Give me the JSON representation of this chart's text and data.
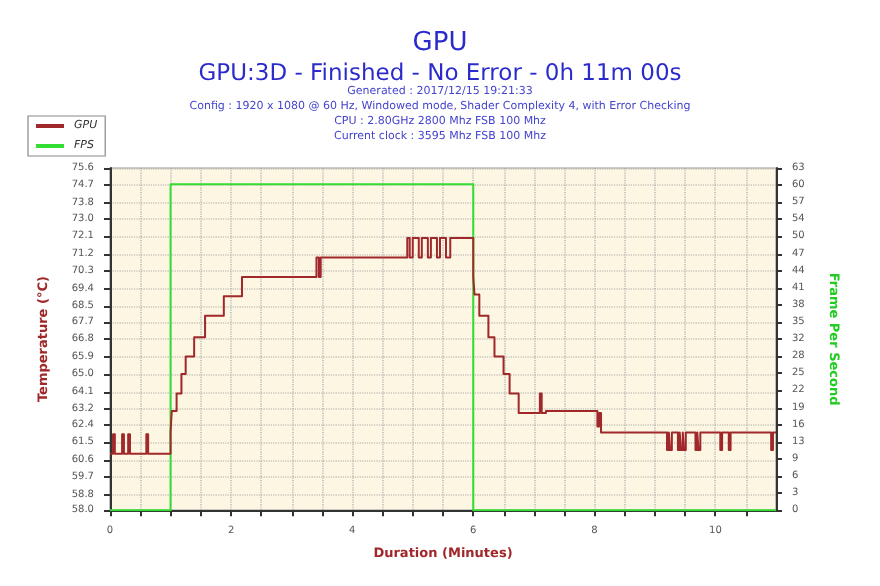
{
  "chart_data": {
    "type": "step",
    "title": "GPU",
    "subtitle": "GPU:3D - Finished - No Error - 0h 11m 00s",
    "annotations": [
      "Generated : 2017/12/15 19:21:33",
      "Config : 1920 x 1080 @ 60 Hz, Windowed mode, Shader Complexity 4, with Error Checking",
      "CPU : 2.80GHz 2800 Mhz FSB 100 Mhz",
      "Current clock : 3595 Mhz FSB 100 Mhz"
    ],
    "xlabel": "Duration (Minutes)",
    "ylabel": "Temperature (°C)",
    "y2label": "Frame Per Second",
    "xlim": [
      0,
      11
    ],
    "xticks": [
      0,
      {
        "value": 0.5,
        "label": null
      },
      {
        "value": 1,
        "label": null
      },
      {
        "value": 1.5,
        "label": null
      },
      2,
      {
        "value": 2.5,
        "label": null
      },
      {
        "value": 3,
        "label": null
      },
      {
        "value": 3.5,
        "label": null
      },
      4,
      {
        "value": 4.5,
        "label": null
      },
      {
        "value": 5,
        "label": null
      },
      {
        "value": 5.5,
        "label": null
      },
      6,
      {
        "value": 6.5,
        "label": null
      },
      {
        "value": 7,
        "label": null
      },
      {
        "value": 7.5,
        "label": null
      },
      8,
      {
        "value": 8.5,
        "label": null
      },
      {
        "value": 9,
        "label": null
      },
      {
        "value": 9.5,
        "label": null
      },
      10,
      {
        "value": 10.5,
        "label": null
      }
    ],
    "ylim": [
      58,
      75.6
    ],
    "yticks": [
      {
        "value": 58,
        "label": "58.0"
      },
      58.8,
      59.7,
      60.6,
      61.5,
      62.4,
      63.2,
      64.1,
      {
        "value": 65,
        "label": "65.0"
      },
      65.9,
      66.8,
      67.7,
      68.5,
      69.4,
      70.3,
      71.2,
      72.1,
      {
        "value": 73,
        "label": "73.0"
      },
      73.8,
      74.7,
      75.6
    ],
    "y2lim": [
      0,
      63
    ],
    "y2ticks": [
      0,
      {
        "value": 3.15,
        "label": "3"
      },
      {
        "value": 6.3,
        "label": "6"
      },
      {
        "value": 9.45,
        "label": "9"
      },
      {
        "value": 12.6,
        "label": "13"
      },
      {
        "value": 15.75,
        "label": "16"
      },
      {
        "value": 18.9,
        "label": "19"
      },
      {
        "value": 22.05,
        "label": "22"
      },
      {
        "value": 25.2,
        "label": "25"
      },
      {
        "value": 28.35,
        "label": "28"
      },
      {
        "value": 31.5,
        "label": "32"
      },
      {
        "value": 34.65,
        "label": "35"
      },
      {
        "value": 37.8,
        "label": "38"
      },
      {
        "value": 40.95,
        "label": "41"
      },
      {
        "value": 44.1,
        "label": "44"
      },
      {
        "value": 47.25,
        "label": "47"
      },
      {
        "value": 50.4,
        "label": "50"
      },
      {
        "value": 53.55,
        "label": "54"
      },
      {
        "value": 56.7,
        "label": "57"
      },
      {
        "value": 59.85,
        "label": "60"
      },
      63
    ],
    "grid": true,
    "legend": "top left",
    "marker": "none",
    "series": [
      {
        "name": "GPU",
        "color": "#a0282a",
        "x": [
          0,
          0.05,
          0.08,
          0.2,
          0.23,
          0.3,
          0.33,
          0.6,
          0.63,
          1.0,
          1.02,
          1.1,
          1.18,
          1.25,
          1.39,
          1.57,
          1.88,
          2.18,
          3.41,
          3.45,
          3.48,
          4.91,
          4.95,
          5.0,
          5.1,
          5.15,
          5.25,
          5.3,
          5.4,
          5.45,
          5.55,
          5.62,
          6.0,
          6.02,
          6.1,
          6.25,
          6.35,
          6.5,
          6.6,
          6.75,
          7.1,
          7.13,
          7.2,
          8.05,
          8.08,
          8.11,
          9.2,
          9.23,
          9.25,
          9.28,
          9.38,
          9.41,
          9.43,
          9.46,
          9.48,
          9.51,
          9.67,
          9.7,
          9.72,
          9.75,
          10.08,
          10.11,
          10.22,
          10.25,
          10.92,
          10.95,
          11
        ],
        "values": [
          60.9,
          61.9,
          60.9,
          61.9,
          60.9,
          61.9,
          60.9,
          61.9,
          60.9,
          62.0,
          63.1,
          64.0,
          65.0,
          65.9,
          66.9,
          68.0,
          69.0,
          70.0,
          71.0,
          70.0,
          71.0,
          72.0,
          71.0,
          72.0,
          71.0,
          72.0,
          71.0,
          72.0,
          71.0,
          72.0,
          71.0,
          72.0,
          70.0,
          69.1,
          68.0,
          66.9,
          65.9,
          65.0,
          64.0,
          63.0,
          64.0,
          63.0,
          63.1,
          62.3,
          63.0,
          62.0,
          61.1,
          62.0,
          61.1,
          62.0,
          61.1,
          62.0,
          61.1,
          62.0,
          61.1,
          62.0,
          61.1,
          62.0,
          61.1,
          62.0,
          61.1,
          62.0,
          61.1,
          62.0,
          61.1,
          62.0,
          62.0
        ]
      },
      {
        "name": "FPS",
        "color": "#33dd33",
        "axis": "y2",
        "x": [
          0,
          1,
          6,
          11
        ],
        "values": [
          0,
          60,
          0,
          0
        ]
      }
    ]
  }
}
